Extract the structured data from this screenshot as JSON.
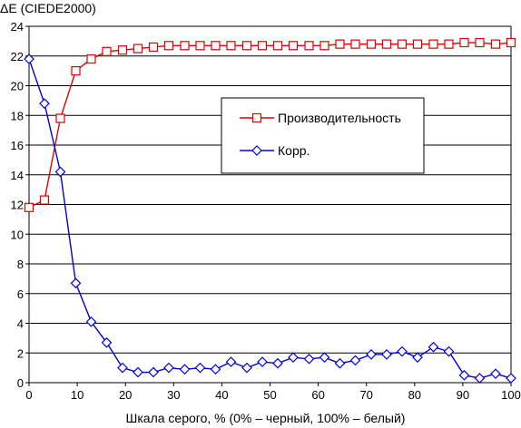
{
  "chart_data": {
    "type": "line",
    "ylabel": "ΔE (CIEDE2000)",
    "xlabel": "Шкала серого, % (0% – черный, 100% – белый)",
    "xlim": [
      0,
      100
    ],
    "ylim": [
      0,
      24
    ],
    "xticks": [
      0,
      10,
      20,
      30,
      40,
      50,
      60,
      70,
      80,
      90,
      100
    ],
    "yticks": [
      0,
      2,
      4,
      6,
      8,
      10,
      12,
      14,
      16,
      18,
      20,
      22,
      24
    ],
    "grid": "horizontal",
    "legend": "inside-right",
    "x": [
      0,
      3.2,
      6.5,
      9.7,
      12.9,
      16.1,
      19.4,
      22.6,
      25.8,
      29.0,
      32.3,
      35.5,
      38.7,
      41.9,
      45.2,
      48.4,
      51.6,
      54.8,
      58.1,
      61.3,
      64.5,
      67.7,
      71.0,
      74.2,
      77.4,
      80.6,
      83.9,
      87.1,
      90.3,
      93.5,
      96.8,
      100
    ],
    "series": [
      {
        "name": "Производительность",
        "color": "#dd0000",
        "marker": "square",
        "values": [
          11.8,
          12.3,
          17.8,
          21.0,
          21.8,
          22.3,
          22.4,
          22.5,
          22.6,
          22.7,
          22.7,
          22.7,
          22.7,
          22.7,
          22.7,
          22.7,
          22.7,
          22.7,
          22.7,
          22.7,
          22.8,
          22.8,
          22.8,
          22.8,
          22.8,
          22.8,
          22.8,
          22.8,
          22.9,
          22.9,
          22.8,
          22.9
        ]
      },
      {
        "name": "Корр.",
        "color": "#0000dd",
        "marker": "diamond",
        "values": [
          21.8,
          18.8,
          14.2,
          6.7,
          4.1,
          2.7,
          1.0,
          0.7,
          0.7,
          1.0,
          0.9,
          1.0,
          0.9,
          1.4,
          1.0,
          1.4,
          1.3,
          1.7,
          1.6,
          1.7,
          1.3,
          1.5,
          1.9,
          1.9,
          2.1,
          1.7,
          2.4,
          2.1,
          0.5,
          0.3,
          0.6,
          0.3
        ]
      }
    ]
  }
}
